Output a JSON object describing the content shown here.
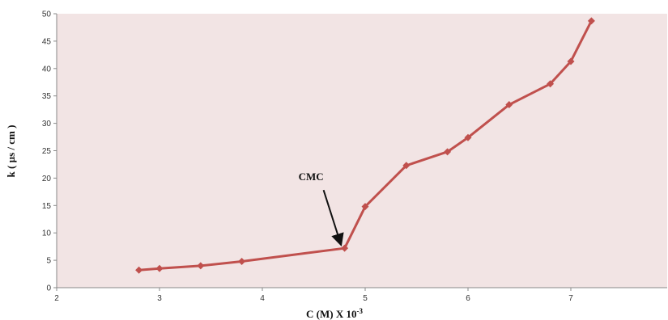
{
  "chart_data": {
    "type": "line",
    "title": "",
    "xlabel": "C (M) X 10",
    "xlabel_sup": "-3",
    "ylabel": "k ( µs / cm )",
    "xlim": [
      2,
      8
    ],
    "ylim": [
      0,
      50
    ],
    "x_ticks": [
      2,
      3,
      4,
      5,
      6,
      7
    ],
    "y_ticks": [
      0,
      5,
      10,
      15,
      20,
      25,
      30,
      35,
      40,
      45,
      50
    ],
    "grid": false,
    "legend": "none",
    "plot_background": "#f2e4e4",
    "series": [
      {
        "color": "#c0504d",
        "marker": "diamond",
        "x": [
          2.8,
          3.0,
          3.4,
          3.8,
          4.8,
          5.0,
          5.4,
          5.8,
          6.0,
          6.4,
          6.8,
          7.0,
          7.2
        ],
        "y": [
          3.2,
          3.5,
          4.0,
          4.8,
          7.2,
          14.8,
          22.3,
          24.8,
          27.4,
          33.4,
          37.2,
          41.3,
          48.7
        ]
      }
    ],
    "annotations": [
      {
        "text": "CMC",
        "x": 4.8,
        "y": 7.2
      }
    ]
  }
}
